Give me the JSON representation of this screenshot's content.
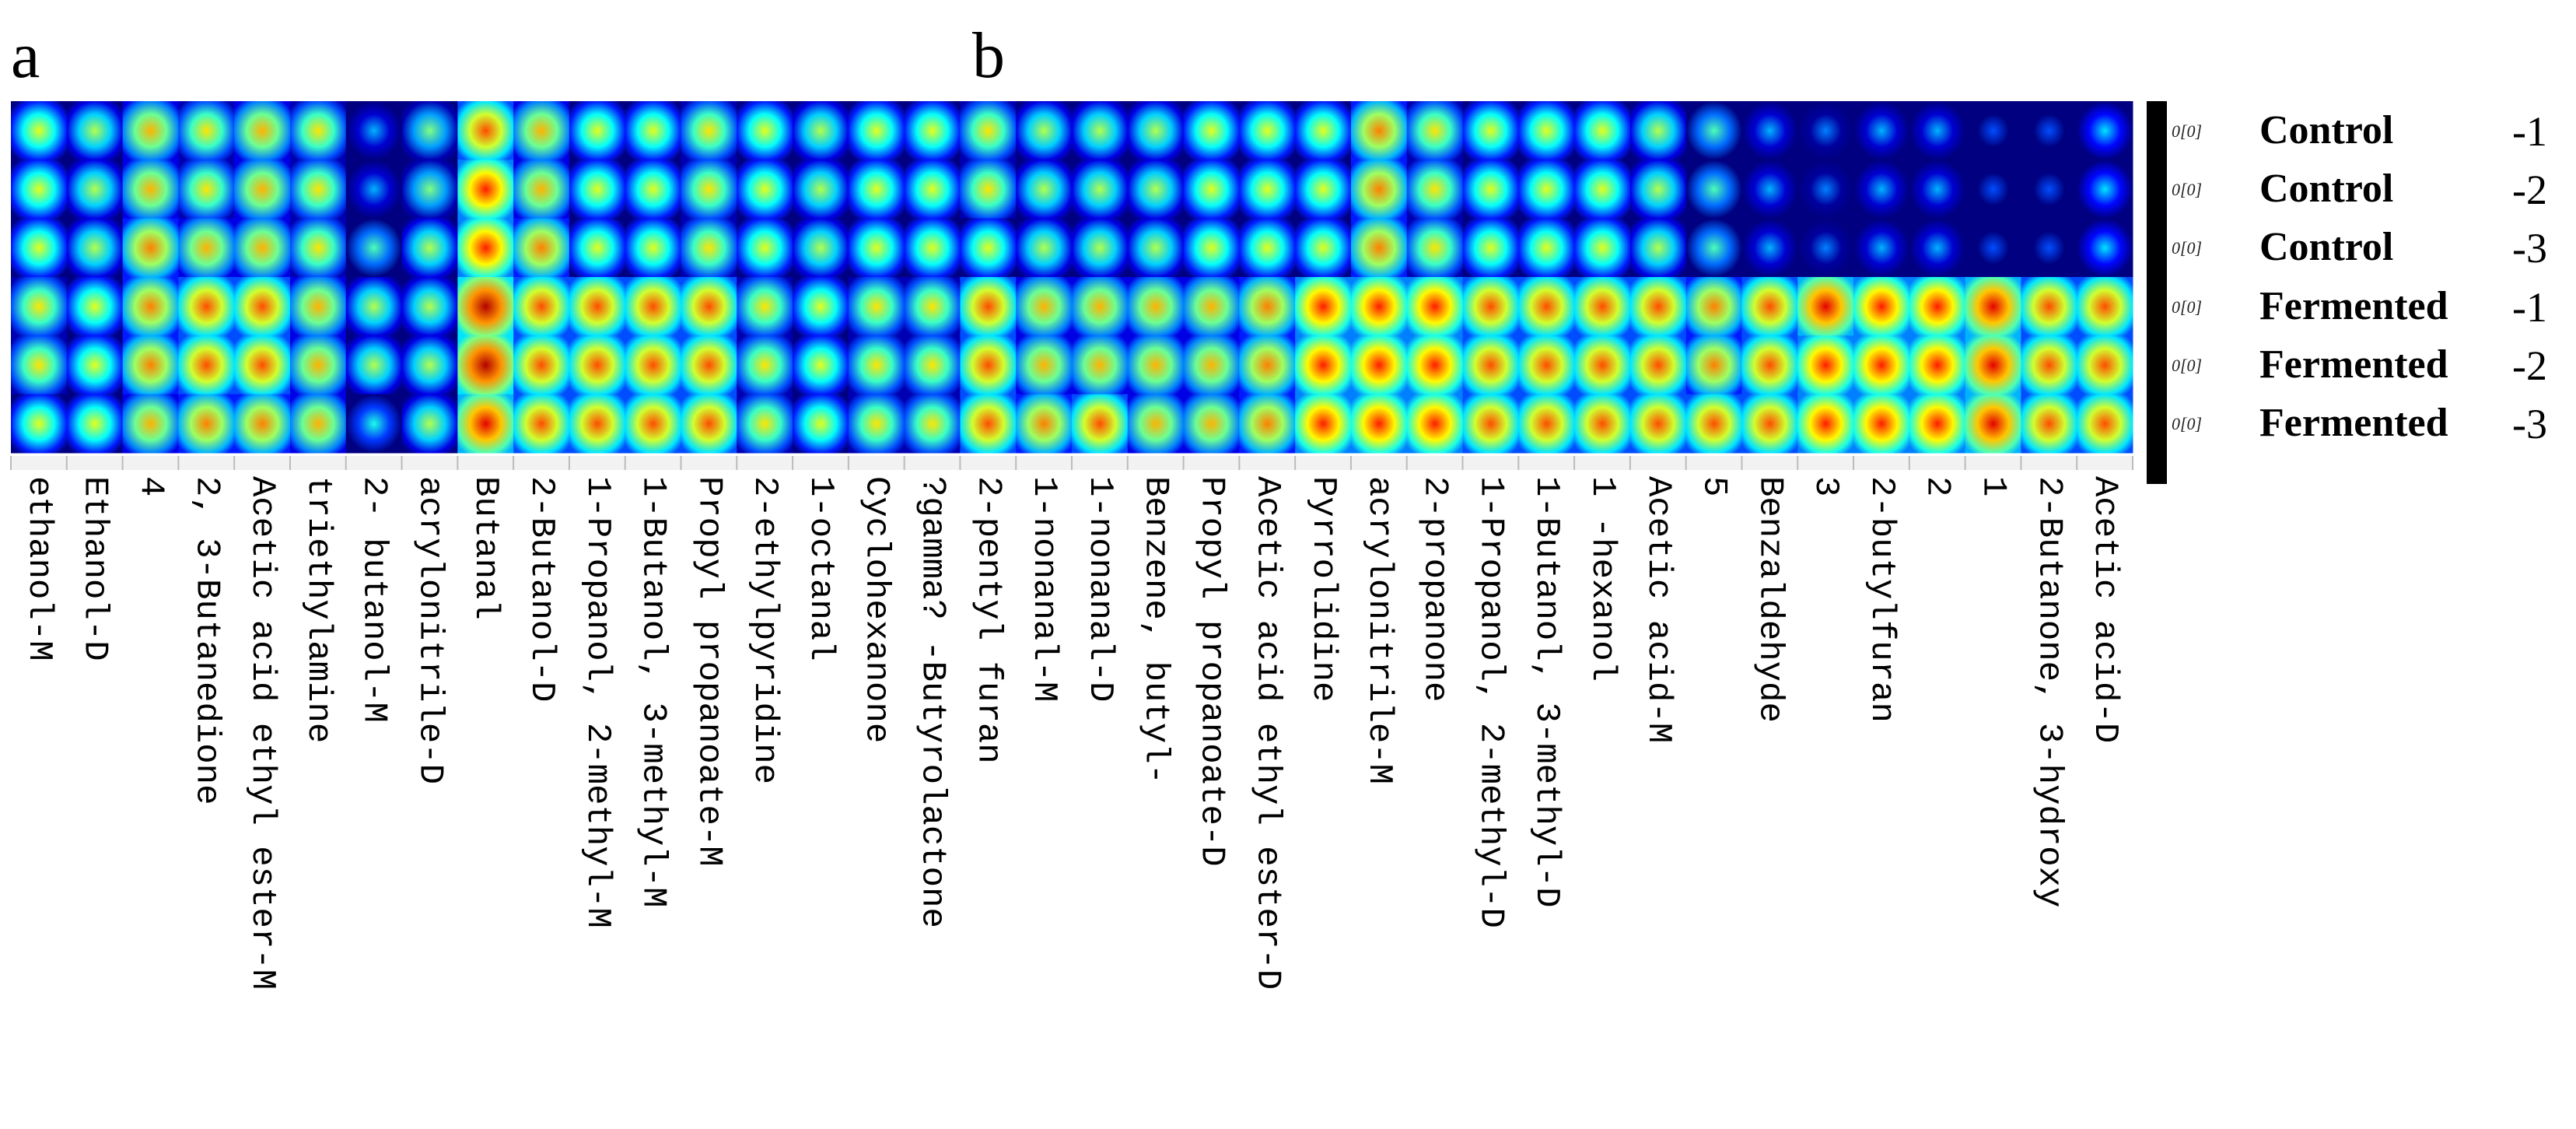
{
  "panel_labels": {
    "a": "a",
    "b": "b"
  },
  "rows": [
    {
      "label": "Control",
      "index": "-1",
      "scale": "0[0]"
    },
    {
      "label": "Control",
      "index": "-2",
      "scale": "0[0]"
    },
    {
      "label": "Control",
      "index": "-3",
      "scale": "0[0]"
    },
    {
      "label": "Fermented",
      "index": "-1",
      "scale": "0[0]"
    },
    {
      "label": "Fermented",
      "index": "-2",
      "scale": "0[0]"
    },
    {
      "label": "Fermented",
      "index": "-3",
      "scale": "0[0]"
    }
  ],
  "colors": {
    "low": "#001a9c",
    "mid": "#3fd6f0",
    "high": "#e81d07"
  },
  "chart_data": {
    "type": "heatmap",
    "panels": [
      "a",
      "b"
    ],
    "row_labels": [
      "Control -1",
      "Control -2",
      "Control -3",
      "Fermented-1",
      "Fermented-2",
      "Fermented-3"
    ],
    "columns": [
      {
        "label": "ethanol-M",
        "panel": "a"
      },
      {
        "label": "Ethanol-D",
        "panel": "a"
      },
      {
        "label": "4",
        "panel": "a"
      },
      {
        "label": "2, 3-Butanedione",
        "panel": "a"
      },
      {
        "label": "Acetic acid ethyl ester-M",
        "panel": "a"
      },
      {
        "label": "triethylamine",
        "panel": "a"
      },
      {
        "label": "2- butanol-M",
        "panel": "a"
      },
      {
        "label": "acrylonitrile-D",
        "panel": "a"
      },
      {
        "label": "Butanal",
        "panel": "a"
      },
      {
        "label": "2-Butanol-D",
        "panel": "a"
      },
      {
        "label": "1-Propanol, 2-methyl-M",
        "panel": "a"
      },
      {
        "label": "1-Butanol, 3-methyl-M",
        "panel": "a"
      },
      {
        "label": "Propyl propanoate-M",
        "panel": "a"
      },
      {
        "label": "2-ethylpyridine",
        "panel": "a"
      },
      {
        "label": "1-octanal",
        "panel": "a"
      },
      {
        "label": "Cyclohexanone",
        "panel": "a"
      },
      {
        "label": "?gamma? -Butyrolactone",
        "panel": "a"
      },
      {
        "label": "2-pentyl furan",
        "panel": "b"
      },
      {
        "label": "1-nonanal-M",
        "panel": "b"
      },
      {
        "label": "1-nonanal-D",
        "panel": "b"
      },
      {
        "label": "Benzene, butyl-",
        "panel": "b"
      },
      {
        "label": "Propyl propanoate-D",
        "panel": "b"
      },
      {
        "label": "Acetic acid ethyl ester-D",
        "panel": "b"
      },
      {
        "label": "Pyrrolidine",
        "panel": "b"
      },
      {
        "label": "acrylonitrile-M",
        "panel": "b"
      },
      {
        "label": "2-propanone",
        "panel": "b"
      },
      {
        "label": "1-Propanol, 2-methyl-D",
        "panel": "b"
      },
      {
        "label": "1-Butanol, 3-methyl-D",
        "panel": "b"
      },
      {
        "label": "1 -hexanol",
        "panel": "b"
      },
      {
        "label": "Acetic acid-M",
        "panel": "b"
      },
      {
        "label": "5",
        "panel": "b"
      },
      {
        "label": "Benzaldehyde",
        "panel": "b"
      },
      {
        "label": "3",
        "panel": "b"
      },
      {
        "label": "2-butylfuran",
        "panel": "b"
      },
      {
        "label": "2",
        "panel": "b"
      },
      {
        "label": "1",
        "panel": "b"
      },
      {
        "label": "2-Butanone, 3-hydroxy",
        "panel": "b"
      },
      {
        "label": "Acetic acid-D",
        "panel": "b"
      }
    ],
    "values": [
      [
        0.6,
        0.55,
        0.7,
        0.65,
        0.7,
        0.65,
        0.3,
        0.5,
        0.8,
        0.7,
        0.6,
        0.6,
        0.65,
        0.6,
        0.55,
        0.6,
        0.6,
        0.65,
        0.55,
        0.55,
        0.55,
        0.6,
        0.6,
        0.6,
        0.75,
        0.65,
        0.6,
        0.6,
        0.6,
        0.55,
        0.45,
        0.3,
        0.25,
        0.3,
        0.3,
        0.2,
        0.2,
        0.35
      ],
      [
        0.6,
        0.55,
        0.7,
        0.65,
        0.7,
        0.65,
        0.3,
        0.5,
        0.85,
        0.7,
        0.6,
        0.6,
        0.65,
        0.6,
        0.55,
        0.6,
        0.6,
        0.65,
        0.55,
        0.55,
        0.55,
        0.6,
        0.6,
        0.6,
        0.75,
        0.65,
        0.6,
        0.6,
        0.6,
        0.55,
        0.45,
        0.3,
        0.25,
        0.3,
        0.3,
        0.2,
        0.2,
        0.35
      ],
      [
        0.6,
        0.55,
        0.75,
        0.7,
        0.7,
        0.65,
        0.45,
        0.55,
        0.85,
        0.75,
        0.6,
        0.6,
        0.65,
        0.6,
        0.55,
        0.6,
        0.6,
        0.6,
        0.55,
        0.55,
        0.55,
        0.6,
        0.6,
        0.6,
        0.75,
        0.65,
        0.6,
        0.6,
        0.6,
        0.55,
        0.45,
        0.3,
        0.25,
        0.3,
        0.3,
        0.2,
        0.2,
        0.35
      ],
      [
        0.65,
        0.6,
        0.75,
        0.8,
        0.8,
        0.7,
        0.55,
        0.55,
        0.95,
        0.8,
        0.8,
        0.8,
        0.8,
        0.65,
        0.6,
        0.65,
        0.65,
        0.8,
        0.7,
        0.7,
        0.7,
        0.7,
        0.75,
        0.85,
        0.85,
        0.85,
        0.8,
        0.8,
        0.8,
        0.8,
        0.75,
        0.8,
        0.9,
        0.85,
        0.85,
        0.9,
        0.8,
        0.8
      ],
      [
        0.65,
        0.6,
        0.75,
        0.8,
        0.8,
        0.7,
        0.55,
        0.55,
        0.95,
        0.8,
        0.8,
        0.8,
        0.8,
        0.65,
        0.6,
        0.65,
        0.65,
        0.8,
        0.7,
        0.7,
        0.7,
        0.7,
        0.75,
        0.85,
        0.85,
        0.85,
        0.8,
        0.8,
        0.8,
        0.8,
        0.75,
        0.8,
        0.85,
        0.85,
        0.85,
        0.9,
        0.8,
        0.8
      ],
      [
        0.6,
        0.6,
        0.7,
        0.75,
        0.75,
        0.7,
        0.4,
        0.55,
        0.9,
        0.8,
        0.8,
        0.8,
        0.8,
        0.65,
        0.6,
        0.65,
        0.65,
        0.8,
        0.75,
        0.8,
        0.7,
        0.7,
        0.75,
        0.85,
        0.85,
        0.85,
        0.8,
        0.8,
        0.8,
        0.8,
        0.8,
        0.8,
        0.85,
        0.85,
        0.85,
        0.9,
        0.8,
        0.8
      ]
    ],
    "colormap": "jet",
    "value_range": [
      0,
      1
    ]
  }
}
